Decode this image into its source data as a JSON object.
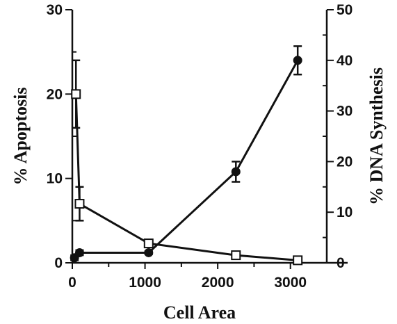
{
  "chart_data": {
    "type": "line",
    "xlabel": "Cell Area",
    "ylabel_left": "% Apoptosis",
    "ylabel_right": "% DNA Synthesis",
    "xlim": [
      0,
      3500
    ],
    "ylim_left": [
      0,
      30
    ],
    "ylim_right": [
      0,
      50
    ],
    "x_ticks": [
      0,
      1000,
      2000,
      3000
    ],
    "y_ticks_left": [
      0,
      10,
      20,
      30
    ],
    "y_ticks_right": [
      0,
      10,
      20,
      30,
      40,
      50
    ],
    "grid": false,
    "series": [
      {
        "marker": "open-square",
        "axis": "left",
        "x": [
          50,
          100,
          1050,
          2250,
          3100
        ],
        "y": [
          20.0,
          7.0,
          2.3,
          0.9,
          0.3
        ],
        "err": [
          4.0,
          2.0,
          0.3,
          0.2,
          0.1
        ]
      },
      {
        "marker": "filled-circle",
        "axis": "right",
        "x": [
          30,
          100,
          1050,
          2250,
          3100
        ],
        "y": [
          1.0,
          2.0,
          2.0,
          18.0,
          40.0
        ],
        "err": [
          0.5,
          0.5,
          0.3,
          2.0,
          2.8
        ]
      }
    ]
  }
}
